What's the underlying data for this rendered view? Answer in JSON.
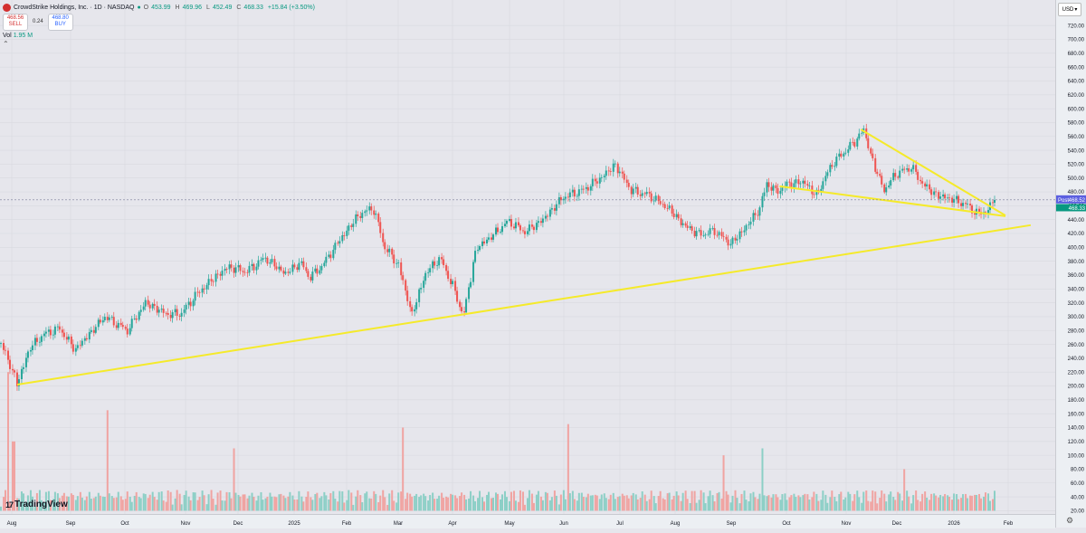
{
  "header": {
    "title": "CrowdStrike Holdings, Inc. · 1D · NASDAQ",
    "ohlc": [
      {
        "label": "O",
        "value": "453.99"
      },
      {
        "label": "H",
        "value": "469.96"
      },
      {
        "label": "L",
        "value": "452.49"
      },
      {
        "label": "C",
        "value": "468.33"
      }
    ],
    "change": "+15.84 (+3.50%)",
    "sell_price": "468.56",
    "sell_label": "SELL",
    "spread": "0.24",
    "buy_price": "468.80",
    "buy_label": "BUY",
    "vol_label": "Vol",
    "vol_value": "1.95 M"
  },
  "currency": "USD",
  "brand": "TradingView",
  "colors": {
    "up": "#26a69a",
    "down": "#ef5350",
    "up_vol": "#8ccfc6",
    "down_vol": "#f0a3a1",
    "trendline": "#f5ea2a",
    "post_badge": "#5b5fe0",
    "last_badge": "#089981",
    "grid": "#d8d9e0"
  },
  "chart_data": {
    "type": "candlestick",
    "symbol": "CrowdStrike Holdings, Inc.",
    "interval": "1D",
    "exchange": "NASDAQ",
    "ylim": [
      20,
      730
    ],
    "y_ticks": [
      "720.00",
      "700.00",
      "680.00",
      "660.00",
      "640.00",
      "620.00",
      "600.00",
      "580.00",
      "560.00",
      "540.00",
      "520.00",
      "500.00",
      "480.00",
      "460.00",
      "440.00",
      "420.00",
      "400.00",
      "380.00",
      "360.00",
      "340.00",
      "320.00",
      "300.00",
      "280.00",
      "260.00",
      "240.00",
      "220.00",
      "200.00",
      "180.00",
      "160.00",
      "140.00",
      "120.00",
      "100.00",
      "80.00",
      "60.00",
      "40.00",
      "20.00"
    ],
    "x_labels": [
      "Aug",
      "Sep",
      "Oct",
      "Nov",
      "Dec",
      "2025",
      "Feb",
      "Mar",
      "Apr",
      "May",
      "Jun",
      "Jul",
      "Aug",
      "Sep",
      "Oct",
      "Nov",
      "Dec",
      "2026",
      "Feb"
    ],
    "anchors": [
      [
        0,
        262
      ],
      [
        15,
        215
      ],
      [
        18,
        203
      ],
      [
        32,
        255
      ],
      [
        48,
        275
      ],
      [
        65,
        283
      ],
      [
        82,
        252
      ],
      [
        100,
        278
      ],
      [
        115,
        300
      ],
      [
        140,
        280
      ],
      [
        160,
        320
      ],
      [
        185,
        303
      ],
      [
        200,
        305
      ],
      [
        215,
        330
      ],
      [
        235,
        355
      ],
      [
        252,
        372
      ],
      [
        272,
        365
      ],
      [
        292,
        385
      ],
      [
        315,
        362
      ],
      [
        332,
        378
      ],
      [
        342,
        356
      ],
      [
        356,
        374
      ],
      [
        372,
        405
      ],
      [
        395,
        445
      ],
      [
        412,
        458
      ],
      [
        425,
        400
      ],
      [
        440,
        375
      ],
      [
        455,
        303
      ],
      [
        470,
        362
      ],
      [
        486,
        385
      ],
      [
        500,
        345
      ],
      [
        512,
        300
      ],
      [
        526,
        398
      ],
      [
        545,
        418
      ],
      [
        562,
        438
      ],
      [
        580,
        422
      ],
      [
        600,
        440
      ],
      [
        622,
        472
      ],
      [
        645,
        483
      ],
      [
        664,
        500
      ],
      [
        680,
        519
      ],
      [
        698,
        482
      ],
      [
        718,
        475
      ],
      [
        740,
        455
      ],
      [
        756,
        432
      ],
      [
        774,
        418
      ],
      [
        790,
        424
      ],
      [
        808,
        405
      ],
      [
        824,
        428
      ],
      [
        840,
        456
      ],
      [
        848,
        493
      ],
      [
        858,
        480
      ],
      [
        872,
        492
      ],
      [
        890,
        494
      ],
      [
        902,
        474
      ],
      [
        920,
        520
      ],
      [
        945,
        552
      ],
      [
        955,
        570
      ],
      [
        966,
        520
      ],
      [
        978,
        482
      ],
      [
        990,
        505
      ],
      [
        1008,
        516
      ],
      [
        1020,
        492
      ],
      [
        1036,
        475
      ],
      [
        1052,
        470
      ],
      [
        1068,
        462
      ],
      [
        1082,
        448
      ],
      [
        1092,
        453
      ],
      [
        1100,
        468.33
      ]
    ],
    "volume_note": "daily volume, millions",
    "current_price": "468.33",
    "post_price": "468.52",
    "post_label": "Post",
    "trendlines": [
      {
        "from": [
          "Aug (2024)",
          202
        ],
        "to": [
          "Feb (2026)",
          445
        ]
      },
      {
        "from": [
          "Oct",
          488
        ],
        "to": [
          "Jan (2026)",
          445
        ]
      },
      {
        "from": [
          "Nov",
          570
        ],
        "to": [
          "Jan (2026)",
          446
        ]
      }
    ]
  }
}
